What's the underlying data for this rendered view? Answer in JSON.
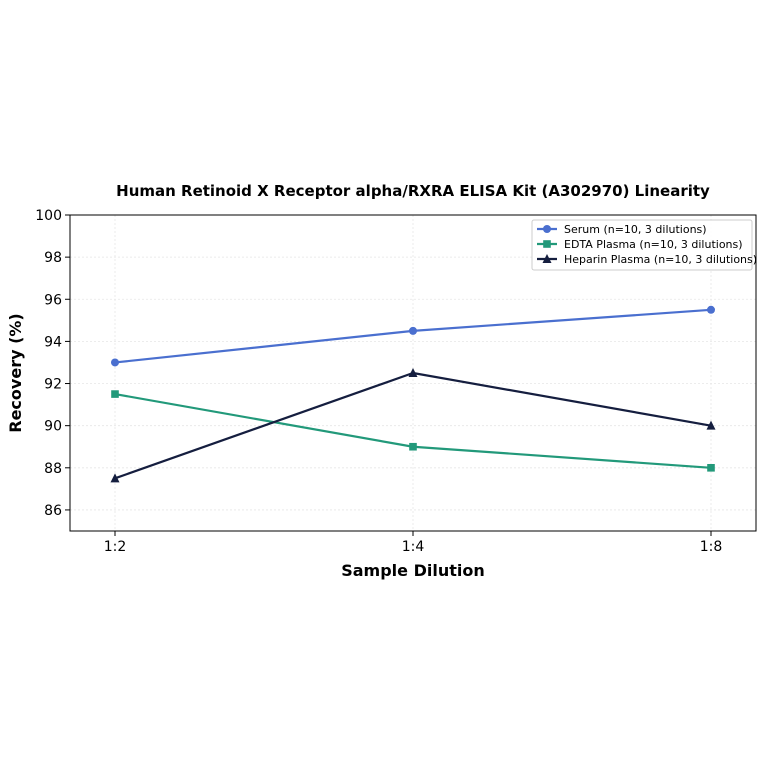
{
  "chart_data": {
    "type": "line",
    "title": "Human Retinoid X Receptor alpha/RXRA ELISA Kit (A302970) Linearity",
    "xlabel": "Sample Dilution",
    "ylabel": "Recovery (%)",
    "categories": [
      "1:2",
      "1:4",
      "1:8"
    ],
    "ylim": [
      85,
      100
    ],
    "yticks": [
      86,
      88,
      90,
      92,
      94,
      96,
      98,
      100
    ],
    "grid": true,
    "legend_position": "top-right",
    "series": [
      {
        "name": "Serum (n=10, 3 dilutions)",
        "values": [
          93.0,
          94.5,
          95.5
        ],
        "color": "#4a6fcf",
        "marker": "circle"
      },
      {
        "name": "EDTA Plasma (n=10, 3 dilutions)",
        "values": [
          91.5,
          89.0,
          88.0
        ],
        "color": "#22997a",
        "marker": "square"
      },
      {
        "name": "Heparin Plasma (n=10, 3 dilutions)",
        "values": [
          87.5,
          92.5,
          90.0
        ],
        "color": "#151e3f",
        "marker": "triangle"
      }
    ]
  }
}
